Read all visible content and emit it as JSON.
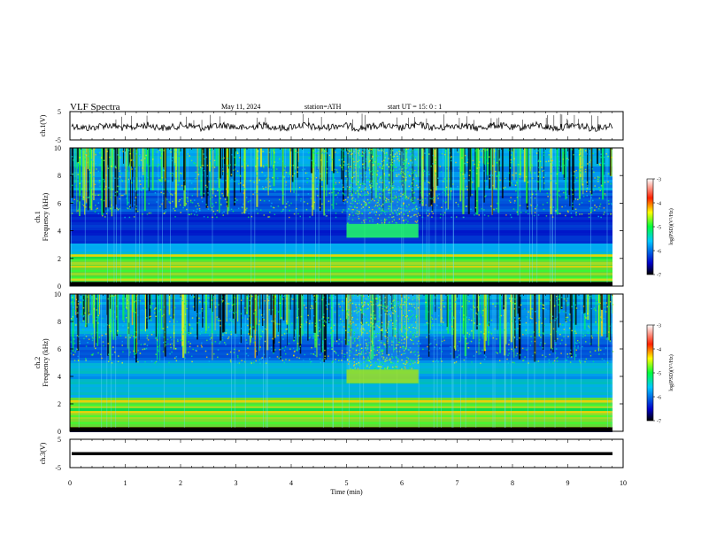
{
  "header": {
    "title": "VLF Spectra",
    "date": "May 11, 2024",
    "station": "station=ATH",
    "start": "start UT =  15: 0  : 1"
  },
  "chart_data": [
    {
      "type": "line",
      "name": "ch1-waveform",
      "ylabel": "ch.1(V)",
      "ylim": [
        -5,
        5
      ],
      "yticks": [
        "5",
        "-5"
      ],
      "xlim": [
        0,
        10
      ],
      "description_level": 0
    },
    {
      "type": "heatmap",
      "name": "ch1-spectrogram",
      "ylabel": "ch.1\nFrequency (kHz)",
      "ylabel_line1": "ch.1",
      "ylabel_line2": "Frequency (kHz)",
      "ylim": [
        0,
        10
      ],
      "yticks": [
        "0",
        "2",
        "4",
        "6",
        "8",
        "10"
      ],
      "xlim": [
        0,
        10
      ],
      "emission_band": {
        "t_start": 5.0,
        "t_end": 6.3,
        "f_low": 3.5,
        "f_high": 4.5
      }
    },
    {
      "type": "heatmap",
      "name": "ch2-spectrogram",
      "ylabel_line1": "ch.2",
      "ylabel_line2": "Frequency (kHz)",
      "ylim": [
        0,
        10
      ],
      "yticks": [
        "0",
        "2",
        "4",
        "6",
        "8",
        "10"
      ],
      "xlim": [
        0,
        10
      ],
      "emission_band": {
        "t_start": 5.0,
        "t_end": 6.3,
        "f_low": 3.5,
        "f_high": 4.5
      }
    },
    {
      "type": "line",
      "name": "ch3-waveform",
      "ylabel": "ch.3(V)",
      "ylim": [
        -5,
        5
      ],
      "yticks": [
        "5",
        "-5"
      ],
      "xlim": [
        0,
        10
      ],
      "level": 0
    }
  ],
  "xaxis": {
    "label": "Time (min)",
    "ticks": [
      "0",
      "1",
      "2",
      "3",
      "4",
      "5",
      "6",
      "7",
      "8",
      "9",
      "10"
    ]
  },
  "colorbar": {
    "label": "log(PSD)(V²/Hz)",
    "ticks": [
      "-3",
      "-4",
      "-5",
      "-6",
      "-7"
    ],
    "range": [
      -7,
      -3
    ]
  },
  "colors": {
    "low": "#000000",
    "blue": "#0000c8",
    "cyan": "#00c8ff",
    "green": "#00ff3c",
    "yellow": "#ffff00",
    "red": "#ff0000",
    "high": "#ffffff"
  }
}
